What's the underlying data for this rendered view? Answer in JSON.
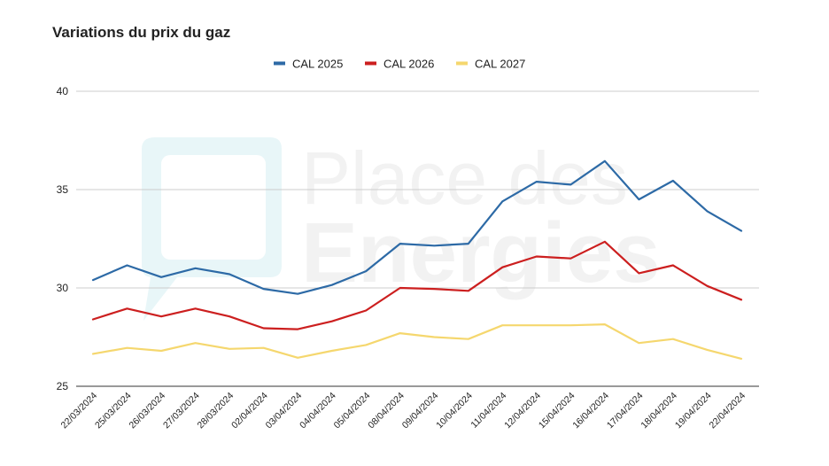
{
  "chart_data": {
    "type": "line",
    "title": "Variations du prix du gaz",
    "xlabel": "",
    "ylabel": "",
    "ylim": [
      25,
      40
    ],
    "yticks": [
      25,
      30,
      35,
      40
    ],
    "grid": true,
    "legend_position": "top",
    "categories": [
      "22/03/2024",
      "25/03/2024",
      "26/03/2024",
      "27/03/2024",
      "28/03/2024",
      "02/04/2024",
      "03/04/2024",
      "04/04/2024",
      "05/04/2024",
      "08/04/2024",
      "09/04/2024",
      "10/04/2024",
      "11/04/2024",
      "12/04/2024",
      "15/04/2024",
      "16/04/2024",
      "17/04/2024",
      "18/04/2024",
      "19/04/2024",
      "22/04/2024"
    ],
    "series": [
      {
        "name": "CAL 2025",
        "color": "#2d6aa6",
        "values": [
          30.4,
          31.15,
          30.55,
          31.0,
          30.7,
          29.95,
          29.7,
          30.15,
          30.85,
          32.25,
          32.15,
          32.25,
          34.4,
          35.4,
          35.25,
          36.45,
          34.5,
          35.45,
          33.9,
          32.9
        ]
      },
      {
        "name": "CAL 2026",
        "color": "#cc1f1f",
        "values": [
          28.4,
          28.95,
          28.55,
          28.95,
          28.55,
          27.95,
          27.9,
          28.3,
          28.85,
          30.0,
          29.95,
          29.85,
          31.05,
          31.6,
          31.5,
          32.35,
          30.75,
          31.15,
          30.1,
          29.4
        ]
      },
      {
        "name": "CAL 2027",
        "color": "#f5d76e",
        "values": [
          26.65,
          26.95,
          26.8,
          27.2,
          26.9,
          26.95,
          26.45,
          26.8,
          27.1,
          27.7,
          27.5,
          27.4,
          28.1,
          28.1,
          28.1,
          28.15,
          27.2,
          27.4,
          26.85,
          26.4
        ]
      }
    ]
  },
  "watermark": {
    "line1": "Place des",
    "line2": "Energies",
    "icon": "speech-bubble-logo-icon"
  }
}
